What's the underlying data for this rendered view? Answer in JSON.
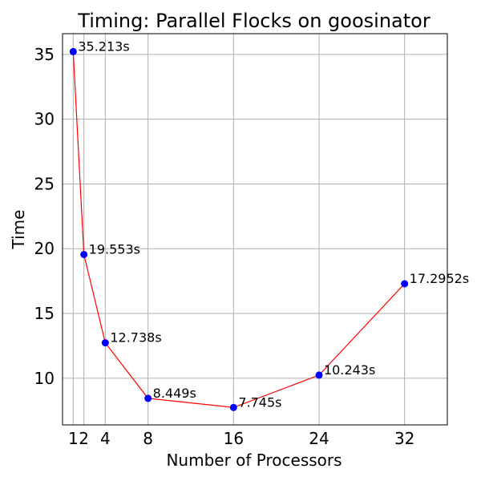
{
  "chart_data": {
    "type": "line",
    "title": "Timing: Parallel Flocks on goosinator",
    "xlabel": "Number of Processors",
    "ylabel": "Time",
    "x": [
      1,
      2,
      4,
      8,
      16,
      24,
      32
    ],
    "y": [
      35.213,
      19.553,
      12.738,
      8.449,
      7.745,
      10.243,
      17.2952
    ],
    "point_labels": [
      "35.213s",
      "19.553s",
      "12.738s",
      "8.449s",
      "7.745s",
      "10.243s",
      "17.2952s"
    ],
    "x_ticks": [
      1,
      2,
      4,
      8,
      16,
      24,
      32
    ],
    "y_ticks": [
      10,
      15,
      20,
      25,
      30,
      35
    ],
    "xlim": [
      0,
      36
    ],
    "ylim": [
      6.4,
      36.6
    ],
    "grid": true,
    "line_color": "#ff0000",
    "marker_color": "#0000ff"
  }
}
